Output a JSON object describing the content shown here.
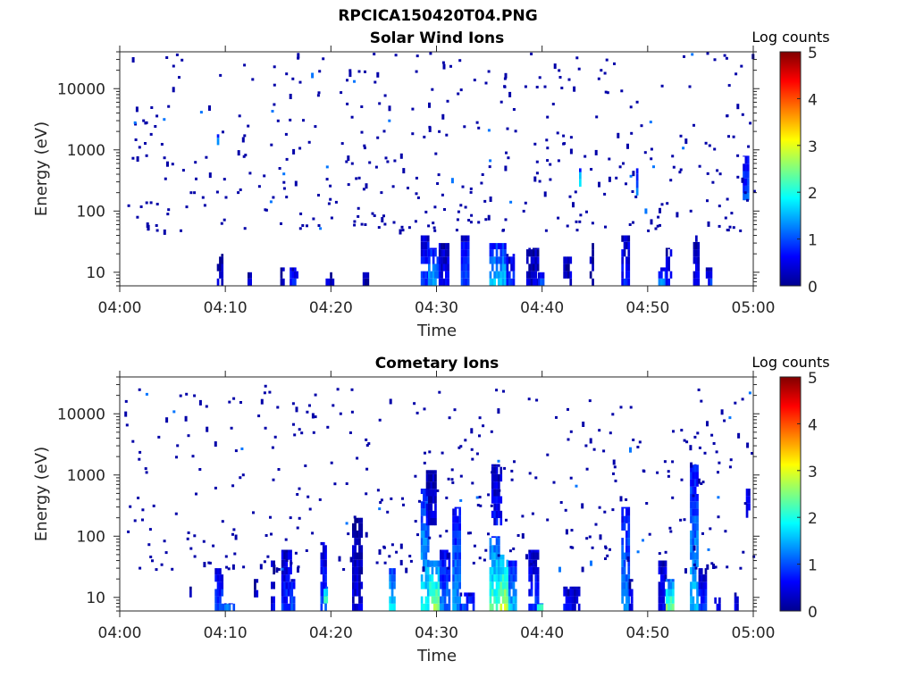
{
  "figure": {
    "filename_title": "RPCICA150420T04.PNG"
  },
  "chart_data": [
    {
      "type": "heatmap",
      "title": "Solar Wind Ions",
      "xlabel": "Time",
      "ylabel": "Energy (eV)",
      "x_unit": "minutes after 04:00",
      "xlim": [
        0,
        60
      ],
      "x_ticks": [
        0,
        10,
        20,
        30,
        40,
        50,
        60
      ],
      "x_tick_labels": [
        "04:00",
        "04:10",
        "04:20",
        "04:30",
        "04:40",
        "04:50",
        "05:00"
      ],
      "yscale": "log",
      "ylim": [
        6,
        40000
      ],
      "y_ticks": [
        10,
        100,
        1000,
        10000
      ],
      "y_tick_labels": [
        "10",
        "100",
        "1000",
        "10000"
      ],
      "colorbar": {
        "label": "Log counts",
        "range": [
          0,
          5
        ],
        "ticks": [
          0,
          1,
          2,
          3,
          4,
          5
        ],
        "colormap": "jet"
      },
      "bursts": [
        {
          "t": [
            9.2,
            9.8
          ],
          "e": [
            6,
            20
          ],
          "v": 0.3
        },
        {
          "t": [
            12.1,
            12.4
          ],
          "e": [
            6,
            10
          ],
          "v": 0.3
        },
        {
          "t": [
            15.2,
            15.5
          ],
          "e": [
            6,
            12
          ],
          "v": 0.4
        },
        {
          "t": [
            16.1,
            16.9
          ],
          "e": [
            6,
            12
          ],
          "v": 0.8
        },
        {
          "t": [
            19.5,
            20.2
          ],
          "e": [
            6,
            10
          ],
          "v": 0.3
        },
        {
          "t": [
            23.0,
            23.6
          ],
          "e": [
            6,
            10
          ],
          "v": 0.3
        },
        {
          "t": [
            28.5,
            29.2
          ],
          "e": [
            6,
            40
          ],
          "v": 0.9
        },
        {
          "t": [
            29.2,
            30.2
          ],
          "e": [
            6,
            25
          ],
          "v": 1.5
        },
        {
          "t": [
            30.2,
            31.2
          ],
          "e": [
            6,
            30
          ],
          "v": 0.6
        },
        {
          "t": [
            32.3,
            33.0
          ],
          "e": [
            6,
            40
          ],
          "v": 0.9
        },
        {
          "t": [
            35.0,
            36.6
          ],
          "e": [
            6,
            30
          ],
          "v": 1.6
        },
        {
          "t": [
            36.6,
            37.3
          ],
          "e": [
            6,
            20
          ],
          "v": 0.8
        },
        {
          "t": [
            38.5,
            39.6
          ],
          "e": [
            6,
            25
          ],
          "v": 0.4
        },
        {
          "t": [
            39.6,
            40.1
          ],
          "e": [
            6,
            10
          ],
          "v": 0.9
        },
        {
          "t": [
            42.0,
            42.8
          ],
          "e": [
            6,
            18
          ],
          "v": 0.4
        },
        {
          "t": [
            44.5,
            44.9
          ],
          "e": [
            6,
            30
          ],
          "v": 0.3
        },
        {
          "t": [
            47.5,
            48.3
          ],
          "e": [
            6,
            40
          ],
          "v": 0.7
        },
        {
          "t": [
            51.0,
            51.7
          ],
          "e": [
            6,
            12
          ],
          "v": 1.2
        },
        {
          "t": [
            51.7,
            52.3
          ],
          "e": [
            6,
            25
          ],
          "v": 0.5
        },
        {
          "t": [
            54.3,
            54.9
          ],
          "e": [
            6,
            40
          ],
          "v": 0.5
        },
        {
          "t": [
            55.5,
            56.0
          ],
          "e": [
            6,
            12
          ],
          "v": 0.8
        },
        {
          "t": [
            59.0,
            59.6
          ],
          "e": [
            150,
            800
          ],
          "v": 1.0
        },
        {
          "t": [
            43.5,
            43.7
          ],
          "e": [
            250,
            500
          ],
          "v": 1.8
        },
        {
          "t": [
            48.9,
            49.1
          ],
          "e": [
            180,
            500
          ],
          "v": 1.2
        },
        {
          "t": [
            9.2,
            9.4
          ],
          "e": [
            1200,
            1800
          ],
          "v": 1.3
        }
      ],
      "scatter_seed": 11,
      "scatter_count": 420,
      "scatter_energy_range": [
        50,
        40000
      ],
      "scatter_value": 0.2
    },
    {
      "type": "heatmap",
      "title": "Cometary Ions",
      "xlabel": "Time",
      "ylabel": "Energy (eV)",
      "x_unit": "minutes after 04:00",
      "xlim": [
        0,
        60
      ],
      "x_ticks": [
        0,
        10,
        20,
        30,
        40,
        50,
        60
      ],
      "x_tick_labels": [
        "04:00",
        "04:10",
        "04:20",
        "04:30",
        "04:40",
        "04:50",
        "05:00"
      ],
      "yscale": "log",
      "ylim": [
        6,
        40000
      ],
      "y_ticks": [
        10,
        100,
        1000,
        10000
      ],
      "y_tick_labels": [
        "10",
        "100",
        "1000",
        "10000"
      ],
      "colorbar": {
        "label": "Log counts",
        "range": [
          0,
          5
        ],
        "ticks": [
          0,
          1,
          2,
          3,
          4,
          5
        ],
        "colormap": "jet"
      },
      "bursts": [
        {
          "t": [
            6.6,
            6.8
          ],
          "e": [
            10,
            15
          ],
          "v": 0.3
        },
        {
          "t": [
            9.0,
            9.7
          ],
          "e": [
            6,
            30
          ],
          "v": 1.0
        },
        {
          "t": [
            9.7,
            10.8
          ],
          "e": [
            6,
            8
          ],
          "v": 1.2
        },
        {
          "t": [
            12.7,
            13.0
          ],
          "e": [
            10,
            20
          ],
          "v": 0.4
        },
        {
          "t": [
            14.3,
            14.7
          ],
          "e": [
            6,
            40
          ],
          "v": 0.5
        },
        {
          "t": [
            15.3,
            16.3
          ],
          "e": [
            6,
            60
          ],
          "v": 0.8
        },
        {
          "t": [
            16.2,
            16.6
          ],
          "e": [
            6,
            20
          ],
          "v": 1.0
        },
        {
          "t": [
            19.0,
            19.6
          ],
          "e": [
            6,
            80
          ],
          "v": 0.9
        },
        {
          "t": [
            19.3,
            19.6
          ],
          "e": [
            8,
            15
          ],
          "v": 2.2
        },
        {
          "t": [
            22.0,
            23.0
          ],
          "e": [
            6,
            200
          ],
          "v": 0.4
        },
        {
          "t": [
            25.5,
            26.0
          ],
          "e": [
            6,
            30
          ],
          "v": 1.8
        },
        {
          "t": [
            28.5,
            29.3
          ],
          "e": [
            6,
            600
          ],
          "v": 1.8
        },
        {
          "t": [
            29.3,
            30.3
          ],
          "e": [
            6,
            40
          ],
          "v": 2.6
        },
        {
          "t": [
            30.3,
            31.3
          ],
          "e": [
            6,
            60
          ],
          "v": 1.2
        },
        {
          "t": [
            29.0,
            30.0
          ],
          "e": [
            150,
            1200
          ],
          "v": 0.5
        },
        {
          "t": [
            31.5,
            32.2
          ],
          "e": [
            6,
            300
          ],
          "v": 1.4
        },
        {
          "t": [
            32.2,
            33.5
          ],
          "e": [
            6,
            12
          ],
          "v": 0.9
        },
        {
          "t": [
            35.0,
            36.0
          ],
          "e": [
            6,
            100
          ],
          "v": 2.3
        },
        {
          "t": [
            36.0,
            36.8
          ],
          "e": [
            6,
            50
          ],
          "v": 2.9
        },
        {
          "t": [
            36.8,
            37.6
          ],
          "e": [
            6,
            40
          ],
          "v": 1.6
        },
        {
          "t": [
            35.2,
            36.2
          ],
          "e": [
            150,
            1500
          ],
          "v": 0.6
        },
        {
          "t": [
            38.7,
            39.6
          ],
          "e": [
            6,
            60
          ],
          "v": 0.8
        },
        {
          "t": [
            39.5,
            40.0
          ],
          "e": [
            6,
            8
          ],
          "v": 2.1
        },
        {
          "t": [
            42.0,
            43.5
          ],
          "e": [
            6,
            15
          ],
          "v": 0.6
        },
        {
          "t": [
            47.5,
            48.2
          ],
          "e": [
            6,
            300
          ],
          "v": 1.4
        },
        {
          "t": [
            48.2,
            48.6
          ],
          "e": [
            6,
            20
          ],
          "v": 0.5
        },
        {
          "t": [
            51.0,
            51.7
          ],
          "e": [
            6,
            40
          ],
          "v": 0.7
        },
        {
          "t": [
            51.7,
            52.4
          ],
          "e": [
            6,
            20
          ],
          "v": 2.4
        },
        {
          "t": [
            54.0,
            54.8
          ],
          "e": [
            6,
            1500
          ],
          "v": 1.6
        },
        {
          "t": [
            54.8,
            55.6
          ],
          "e": [
            6,
            30
          ],
          "v": 0.8
        },
        {
          "t": [
            56.3,
            57.0
          ],
          "e": [
            6,
            10
          ],
          "v": 0.5
        },
        {
          "t": [
            58.2,
            58.6
          ],
          "e": [
            6,
            12
          ],
          "v": 0.4
        },
        {
          "t": [
            59.3,
            59.7
          ],
          "e": [
            200,
            600
          ],
          "v": 0.7
        }
      ],
      "scatter_seed": 29,
      "scatter_count": 380,
      "scatter_energy_range": [
        30,
        30000
      ],
      "scatter_value": 0.2
    }
  ]
}
